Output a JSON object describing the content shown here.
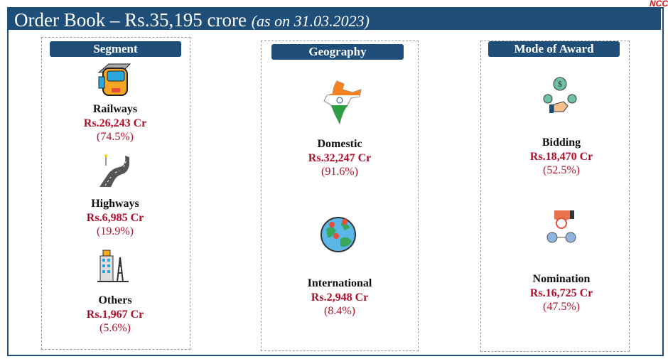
{
  "title": {
    "main": "Order Book – Rs.35,195 crore",
    "date": "(as on 31.03.2023)"
  },
  "logo": "NCC",
  "colors": {
    "header": "#1f4e79",
    "value": "#b0102a"
  },
  "segment": {
    "label": "Segment",
    "items": [
      {
        "name": "Railways",
        "value": "Rs.26,243 Cr",
        "pct": "(74.5%)",
        "icon": "train-icon"
      },
      {
        "name": "Highways",
        "value": "Rs.6,985 Cr",
        "pct": "(19.9%)",
        "icon": "road-icon"
      },
      {
        "name": "Others",
        "value": "Rs.1,967 Cr",
        "pct": "(5.6%)",
        "icon": "buildings-icon"
      }
    ]
  },
  "geography": {
    "label": "Geography",
    "items": [
      {
        "name": "Domestic",
        "value": "Rs.32,247 Cr",
        "pct": "(91.6%)",
        "icon": "india-map-icon"
      },
      {
        "name": "International",
        "value": "Rs.2,948 Cr",
        "pct": "(8.4%)",
        "icon": "globe-icon"
      }
    ]
  },
  "mode": {
    "label": "Mode of Award",
    "items": [
      {
        "name": "Bidding",
        "value": "Rs.18,470 Cr",
        "pct": "(52.5%)",
        "icon": "bidding-icon"
      },
      {
        "name": "Nomination",
        "value": "Rs.16,725 Cr",
        "pct": "(47.5%)",
        "icon": "nomination-icon"
      }
    ]
  }
}
